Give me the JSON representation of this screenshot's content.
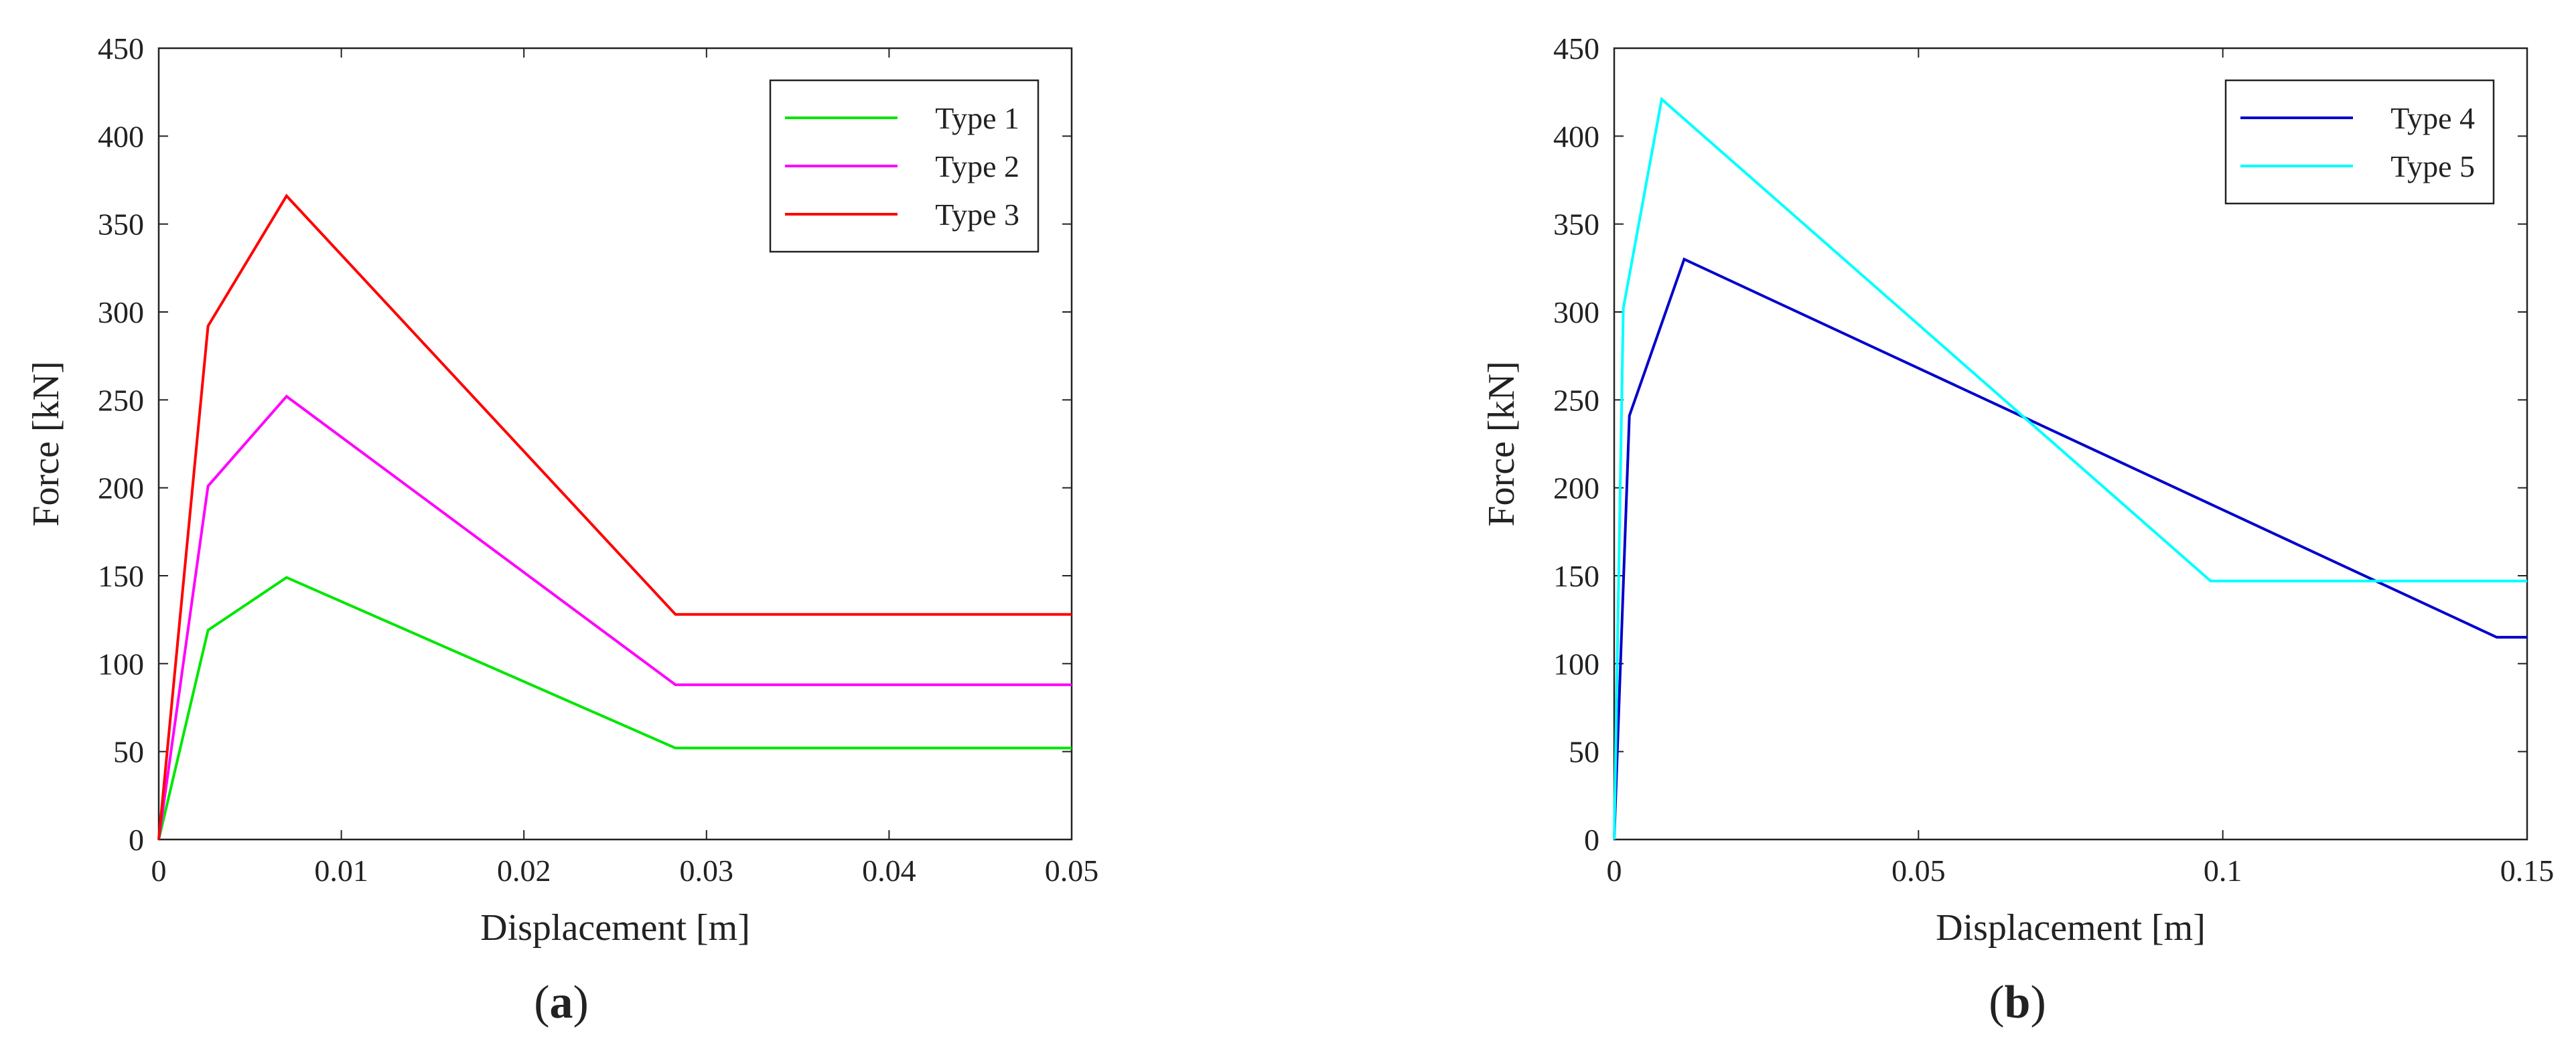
{
  "panels": [
    {
      "label_open": "(",
      "label_letter": "a",
      "label_close": ")"
    },
    {
      "label_open": "(",
      "label_letter": "b",
      "label_close": ")"
    }
  ],
  "chart_data": [
    {
      "type": "line",
      "title": "",
      "xlabel": "Displacement [m]",
      "ylabel": "Force [kN]",
      "xlim": [
        0,
        0.05
      ],
      "ylim": [
        0,
        450
      ],
      "xticks": [
        0,
        0.01,
        0.02,
        0.03,
        0.04,
        0.05
      ],
      "xtick_labels": [
        "0",
        "0.01",
        "0.02",
        "0.03",
        "0.04",
        "0.05"
      ],
      "yticks": [
        0,
        50,
        100,
        150,
        200,
        250,
        300,
        350,
        400,
        450
      ],
      "ytick_labels": [
        "0",
        "50",
        "100",
        "150",
        "200",
        "250",
        "300",
        "350",
        "400",
        "450"
      ],
      "grid": false,
      "legend_position": "top-right",
      "series": [
        {
          "name": "Type 1",
          "color": "#00e600",
          "x": [
            0,
            0.0027,
            0.007,
            0.0283,
            0.05
          ],
          "y": [
            0,
            119,
            149,
            52,
            52
          ]
        },
        {
          "name": "Type 2",
          "color": "#ff00ff",
          "x": [
            0,
            0.0027,
            0.007,
            0.0283,
            0.05
          ],
          "y": [
            0,
            201,
            252,
            88,
            88
          ]
        },
        {
          "name": "Type 3",
          "color": "#ff0000",
          "x": [
            0,
            0.0027,
            0.007,
            0.0283,
            0.05
          ],
          "y": [
            0,
            292,
            366,
            128,
            128
          ]
        }
      ]
    },
    {
      "type": "line",
      "title": "",
      "xlabel": "Displacement [m]",
      "ylabel": "Force [kN]",
      "xlim": [
        0,
        0.15
      ],
      "ylim": [
        0,
        450
      ],
      "xticks": [
        0,
        0.05,
        0.1,
        0.15
      ],
      "xtick_labels": [
        "0",
        "0.05",
        "0.1",
        "0.15"
      ],
      "yticks": [
        0,
        50,
        100,
        150,
        200,
        250,
        300,
        350,
        400,
        450
      ],
      "ytick_labels": [
        "0",
        "50",
        "100",
        "150",
        "200",
        "250",
        "300",
        "350",
        "400",
        "450"
      ],
      "grid": false,
      "legend_position": "top-right",
      "series": [
        {
          "name": "Type 4",
          "color": "#0000cc",
          "x": [
            0,
            0.0025,
            0.0115,
            0.145,
            0.15
          ],
          "y": [
            0,
            241,
            330,
            115,
            115
          ]
        },
        {
          "name": "Type 5",
          "color": "#00ffff",
          "x": [
            0,
            0.0015,
            0.0078,
            0.098,
            0.15
          ],
          "y": [
            0,
            302,
            421,
            147,
            147
          ]
        }
      ]
    }
  ]
}
